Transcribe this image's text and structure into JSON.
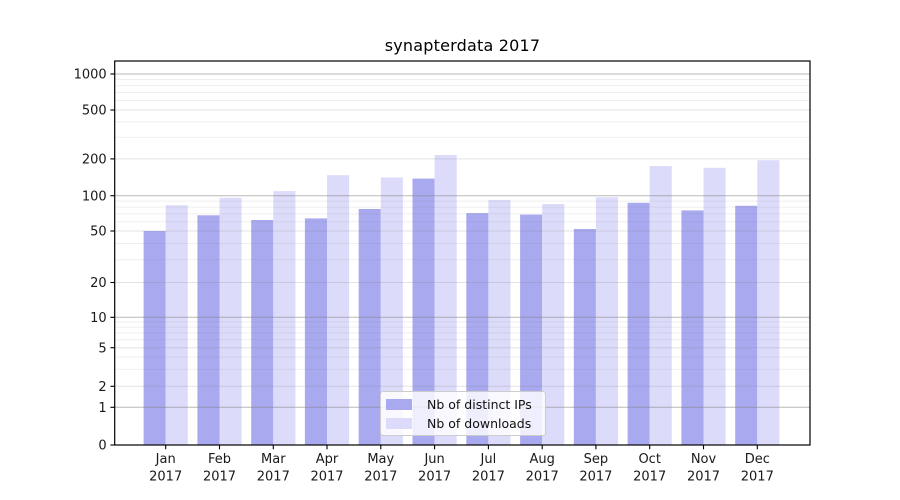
{
  "chart_data": {
    "type": "bar",
    "title": "synapterdata 2017",
    "categories": [
      "Jan",
      "Feb",
      "Mar",
      "Apr",
      "May",
      "Jun",
      "Jul",
      "Aug",
      "Sep",
      "Oct",
      "Nov",
      "Dec"
    ],
    "x_tick_line2": "2017",
    "series": [
      {
        "name": "Nb of distinct IPs",
        "color": "#a9a9f0",
        "values": [
          50,
          68,
          62,
          64,
          77,
          138,
          71,
          69,
          52,
          87,
          75,
          82
        ]
      },
      {
        "name": "Nb of downloads",
        "color": "#dcdcfa",
        "values": [
          83,
          96,
          109,
          147,
          141,
          215,
          92,
          85,
          97,
          175,
          169,
          195
        ]
      }
    ],
    "y_tick_values": [
      1000,
      500,
      200,
      100,
      50,
      20,
      10,
      5,
      2,
      1,
      0
    ],
    "y_tick_labels": [
      "1000",
      "500",
      "200",
      "100",
      "50",
      "20",
      "10",
      "5",
      "2",
      "1",
      "0"
    ],
    "ylabel": "",
    "xlabel": "",
    "scale": "symlog",
    "ylim": [
      0,
      1280
    ],
    "grid": true,
    "legend_position": "lower center"
  }
}
